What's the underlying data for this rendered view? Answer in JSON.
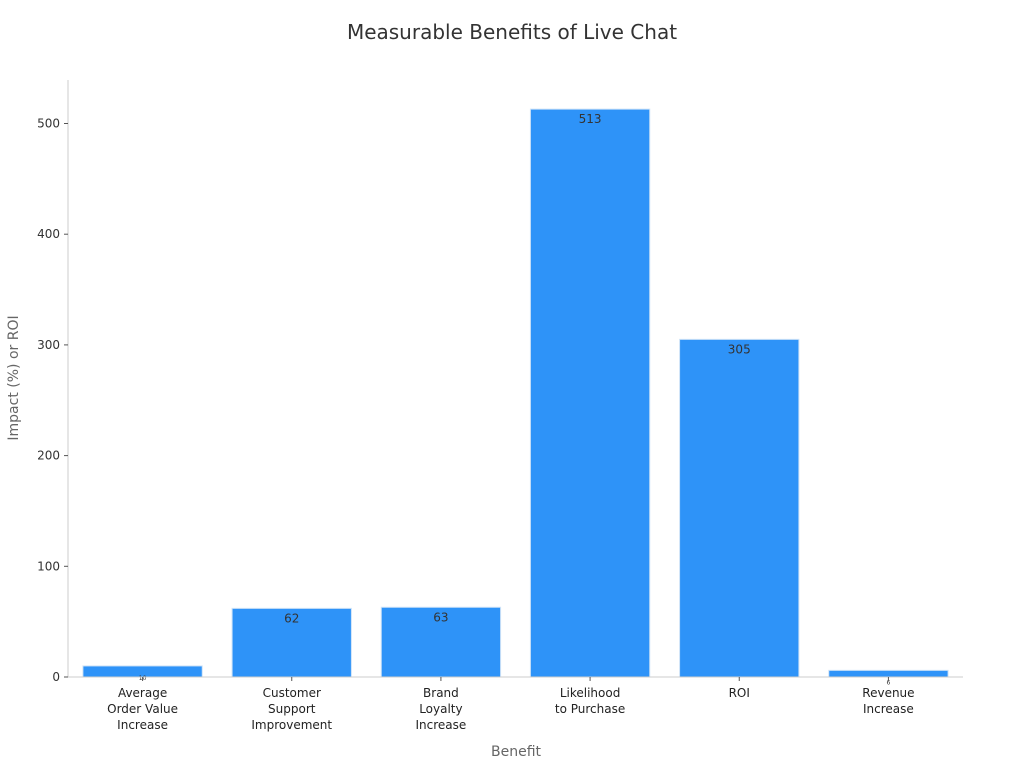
{
  "chart_data": {
    "type": "bar",
    "title": "Measurable Benefits of Live Chat",
    "xlabel": "Benefit",
    "ylabel": "Impact (%) or ROI",
    "categories": [
      [
        "Average",
        "Order Value",
        "Increase"
      ],
      [
        "Customer",
        "Support",
        "Improvement"
      ],
      [
        "Brand",
        "Loyalty",
        "Increase"
      ],
      [
        "Likelihood",
        "to Purchase"
      ],
      [
        "ROI"
      ],
      [
        "Revenue",
        "Increase"
      ]
    ],
    "values": [
      10,
      62,
      63,
      513,
      305,
      6
    ],
    "data_labels": [
      "10",
      "62",
      "63",
      "513",
      "305",
      "6"
    ],
    "ylim": [
      0,
      540
    ],
    "yticks": [
      0,
      100,
      200,
      300,
      400,
      500
    ],
    "grid": false,
    "bar_color": "#2e93f8",
    "bar_edge_color": "#cfe3f7"
  }
}
